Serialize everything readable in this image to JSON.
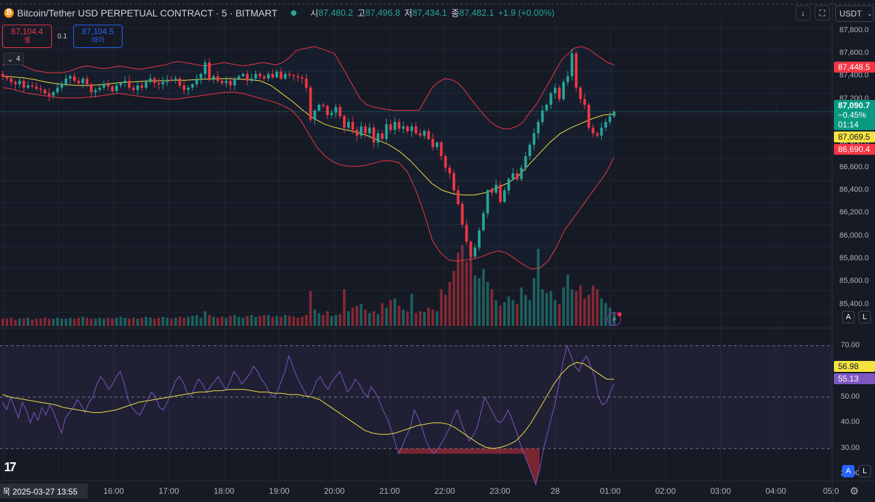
{
  "header": {
    "coin_glyph": "₿",
    "title": "Bitcoin/Tether USD PERPETUAL CONTRACT · 5 · BITMART",
    "open_label": "시",
    "open_value": "87,480.2",
    "high_label": "고",
    "high_value": "87,496.8",
    "low_label": "저",
    "low_value": "87,434.1",
    "close_label": "종",
    "close_value": "87,482.1",
    "change": "+1.9 (+0.00%)"
  },
  "trade": {
    "sell_price": "87,104.4",
    "sell_label": "셀",
    "spread": "0.1",
    "buy_price": "87,104.5",
    "buy_label": "바이"
  },
  "indicator_toggle": "4",
  "toolbar": {
    "download_icon": "↓",
    "fullscreen_icon": "⛶",
    "currency": "USDT",
    "currency_chevron": "⌄"
  },
  "price_axis": [
    "87,800.0",
    "87,600.0",
    "87,400.0",
    "87,200.0",
    "86,800.0",
    "86,600.0",
    "86,400.0",
    "86,200.0",
    "86,000.0",
    "85,800.0",
    "85,600.0",
    "85,400.0"
  ],
  "price_tags": {
    "bb_upper": "87,448.5",
    "last_price": "87,090.7",
    "last_change": "−0.45%",
    "countdown": "01:14",
    "bb_basis": "87,069.5",
    "bb_lower": "86,690.4"
  },
  "rsi_axis": [
    "70.00",
    "50.00",
    "40.00",
    "30.00",
    "20.00"
  ],
  "rsi_tags": {
    "rsi_ma": "56.98",
    "rsi": "55.13"
  },
  "time_axis": [
    "16:00",
    "17:00",
    "18:00",
    "19:00",
    "20:00",
    "21:00",
    "22:00",
    "23:00",
    "28",
    "01:00",
    "02:00",
    "03:00",
    "04:00",
    "05:0"
  ],
  "cursor_date": "목 2025-03-27   13:55",
  "scale_buttons": {
    "auto": "A",
    "log": "L"
  },
  "logo": "17",
  "colors": {
    "up": "#26a69a",
    "down": "#f23645",
    "bb": "#f23645",
    "basis": "#f5e342",
    "rsi": "#7e57c2",
    "rsi_ma": "#f5e342",
    "bg": "#161a25"
  },
  "chart_data": [
    {
      "type": "candlestick",
      "title": "Bitcoin/Tether USD PERPETUAL CONTRACT · 5 · BITMART",
      "ylim": [
        85200,
        87900
      ],
      "close": [
        87400,
        87380,
        87350,
        87330,
        87360,
        87300,
        87320,
        87310,
        87290,
        87280,
        87250,
        87230,
        87260,
        87300,
        87330,
        87380,
        87400,
        87360,
        87340,
        87380,
        87330,
        87260,
        87280,
        87300,
        87330,
        87310,
        87270,
        87320,
        87340,
        87360,
        87300,
        87280,
        87320,
        87300,
        87350,
        87380,
        87340,
        87330,
        87350,
        87370,
        87360,
        87380,
        87320,
        87280,
        87300,
        87330,
        87380,
        87420,
        87520,
        87380,
        87400,
        87360,
        87340,
        87360,
        87320,
        87380,
        87400,
        87420,
        87360,
        87380,
        87420,
        87400,
        87380,
        87420,
        87390,
        87440,
        87380,
        87420,
        87410,
        87400,
        87390,
        87380,
        87300,
        87020,
        87100,
        87150,
        87140,
        87060,
        87080,
        87130,
        87050,
        86950,
        87000,
        86930,
        86880,
        86960,
        86900,
        86950,
        86820,
        86900,
        86850,
        86980,
        86930,
        87000,
        86940,
        86960,
        86920,
        86960,
        86900,
        86880,
        86920,
        86850,
        86780,
        86820,
        86700,
        86600,
        86550,
        86400,
        86280,
        86100,
        85950,
        85820,
        85900,
        86050,
        86200,
        86400,
        86380,
        86450,
        86300,
        86400,
        86500,
        86550,
        86500,
        86600,
        86700,
        86800,
        86900,
        87000,
        87100,
        87150,
        87250,
        87300,
        87200,
        87350,
        87400,
        87600,
        87300,
        87200,
        87150,
        86950,
        86900,
        86880,
        86950,
        87000,
        87050,
        87090.7
      ],
      "volume": [
        8,
        8,
        9,
        7,
        8,
        8,
        9,
        7,
        8,
        8,
        9,
        8,
        8,
        9,
        8,
        8,
        9,
        8,
        9,
        10,
        9,
        8,
        8,
        9,
        8,
        9,
        8,
        9,
        10,
        9,
        8,
        9,
        8,
        9,
        10,
        9,
        8,
        9,
        10,
        9,
        8,
        9,
        10,
        9,
        10,
        11,
        12,
        9,
        16,
        12,
        10,
        9,
        10,
        9,
        11,
        12,
        10,
        9,
        11,
        12,
        10,
        11,
        12,
        12,
        10,
        11,
        10,
        12,
        11,
        10,
        9,
        10,
        12,
        38,
        18,
        14,
        12,
        16,
        11,
        12,
        13,
        40,
        16,
        20,
        22,
        24,
        18,
        14,
        16,
        13,
        25,
        20,
        28,
        30,
        22,
        18,
        16,
        35,
        14,
        16,
        15,
        20,
        18,
        16,
        40,
        34,
        48,
        60,
        80,
        88,
        70,
        82,
        55,
        52,
        62,
        48,
        40,
        28,
        22,
        26,
        32,
        28,
        24,
        42,
        34,
        28,
        52,
        84,
        40,
        36,
        38,
        28,
        24,
        42,
        56,
        40,
        38,
        44,
        30,
        34,
        44,
        40,
        30,
        25,
        20,
        15
      ],
      "bb_upper": [
        87500,
        87510,
        87515,
        87500,
        87470,
        87450,
        87440,
        87430,
        87430,
        87430,
        87440,
        87460,
        87480,
        87490,
        87480,
        87470,
        87470,
        87480,
        87490,
        87480,
        87470,
        87460,
        87470,
        87480,
        87490,
        87500,
        87520,
        87530,
        87520,
        87510,
        87500,
        87490,
        87500,
        87510,
        87520,
        87510,
        87500,
        87490,
        87500,
        87510,
        87520,
        87510,
        87500,
        87520,
        87560,
        87620,
        87640,
        87650,
        87660,
        87640,
        87620,
        87600,
        87500,
        87400,
        87300,
        87200,
        87150,
        87130,
        87120,
        87110,
        87100,
        87100,
        87100,
        87100,
        87100,
        87200,
        87300,
        87350,
        87380,
        87370,
        87340,
        87280,
        87200,
        87130,
        87060,
        87000,
        86960,
        86940,
        86940,
        86960,
        87000,
        87080,
        87150,
        87250,
        87350,
        87450,
        87550,
        87600,
        87650,
        87660,
        87640,
        87600,
        87560,
        87520,
        87500
      ],
      "bb_basis": [
        87400,
        87395,
        87385,
        87370,
        87350,
        87335,
        87325,
        87320,
        87320,
        87325,
        87335,
        87345,
        87350,
        87355,
        87360,
        87360,
        87365,
        87365,
        87370,
        87375,
        87378,
        87380,
        87375,
        87370,
        87360,
        87320,
        87250,
        87180,
        87100,
        87030,
        86980,
        86950,
        86930,
        86910,
        86880,
        86840,
        86800,
        86740,
        86660,
        86560,
        86460,
        86400,
        86370,
        86360,
        86360,
        86380,
        86420,
        86460,
        86520,
        86620,
        86720,
        86820,
        86900,
        86950,
        86990,
        87030,
        87060,
        87069.5
      ],
      "bb_lower": [
        87300,
        87290,
        87270,
        87250,
        87240,
        87230,
        87220,
        87210,
        87210,
        87210,
        87215,
        87220,
        87230,
        87240,
        87250,
        87240,
        87230,
        87220,
        87210,
        87210,
        87200,
        87200,
        87210,
        87220,
        87230,
        87240,
        87250,
        87260,
        87260,
        87250,
        87230,
        87210,
        87190,
        87170,
        87140,
        87100,
        87020,
        86900,
        86780,
        86700,
        86650,
        86620,
        86610,
        86610,
        86620,
        86640,
        86660,
        86660,
        86640,
        86560,
        86400,
        86200,
        85960,
        85850,
        85790,
        85780,
        85790,
        85800,
        85820,
        85850,
        85870,
        85850,
        85800,
        85750,
        85710,
        85720,
        85780,
        85900,
        86050,
        86150,
        86250,
        86350,
        86450,
        86550,
        86690.4
      ]
    },
    {
      "type": "line",
      "title": "RSI",
      "ylim": [
        18,
        75
      ],
      "levels": [
        70,
        50,
        30
      ],
      "series": [
        {
          "values": [
            48,
            45,
            50,
            46,
            42,
            48,
            45,
            40,
            44,
            41,
            46,
            43,
            47,
            44,
            40,
            36,
            42,
            44,
            46,
            49,
            47,
            44,
            48,
            50,
            55,
            58,
            56,
            53,
            55,
            58,
            60,
            55,
            49,
            46,
            44,
            43,
            46,
            49,
            52,
            50,
            46,
            45,
            48,
            52,
            56,
            58,
            56,
            52,
            50,
            54,
            57,
            55,
            52,
            54,
            56,
            58,
            55,
            53,
            56,
            60,
            58,
            55,
            57,
            59,
            62,
            60,
            57,
            55,
            52,
            50,
            52,
            56,
            60,
            66,
            62,
            58,
            55,
            52,
            50,
            52,
            56,
            58,
            55,
            53,
            56,
            58,
            60,
            56,
            52,
            54,
            57,
            55,
            52,
            50,
            54,
            52,
            49,
            45,
            42,
            38,
            33,
            28,
            31,
            35,
            38,
            45,
            42,
            38,
            33,
            30,
            28,
            30,
            32,
            35,
            38,
            42,
            45,
            40,
            36,
            33,
            35,
            38,
            44,
            50,
            47,
            44,
            41,
            40,
            42,
            45,
            41,
            37,
            32,
            28,
            24,
            20,
            16,
            22,
            30,
            36,
            42,
            48,
            56,
            64,
            70,
            66,
            62,
            60,
            64,
            66,
            62,
            58,
            50,
            47,
            48,
            52,
            55.13
          ]
        },
        {
          "values": [
            51,
            50,
            49.5,
            49,
            48.5,
            48,
            47.5,
            47,
            46,
            45.5,
            45,
            44.5,
            44,
            44,
            44.5,
            45,
            46,
            47,
            48,
            48.5,
            49,
            49.5,
            50,
            50.5,
            51,
            51.5,
            52,
            52,
            52.5,
            52.5,
            53,
            53,
            53,
            52.5,
            52,
            52,
            51.5,
            51.5,
            51,
            51,
            50.5,
            50,
            49,
            47,
            45,
            43,
            41,
            39,
            37,
            36,
            35.5,
            35.5,
            36,
            37,
            38,
            39,
            39.5,
            40,
            40,
            39.5,
            38,
            36,
            34,
            32,
            30.5,
            30,
            30.5,
            31.5,
            33,
            36,
            40,
            45,
            50,
            55,
            59,
            62,
            63.5,
            63,
            61,
            59,
            57,
            56.98
          ]
        }
      ]
    }
  ]
}
